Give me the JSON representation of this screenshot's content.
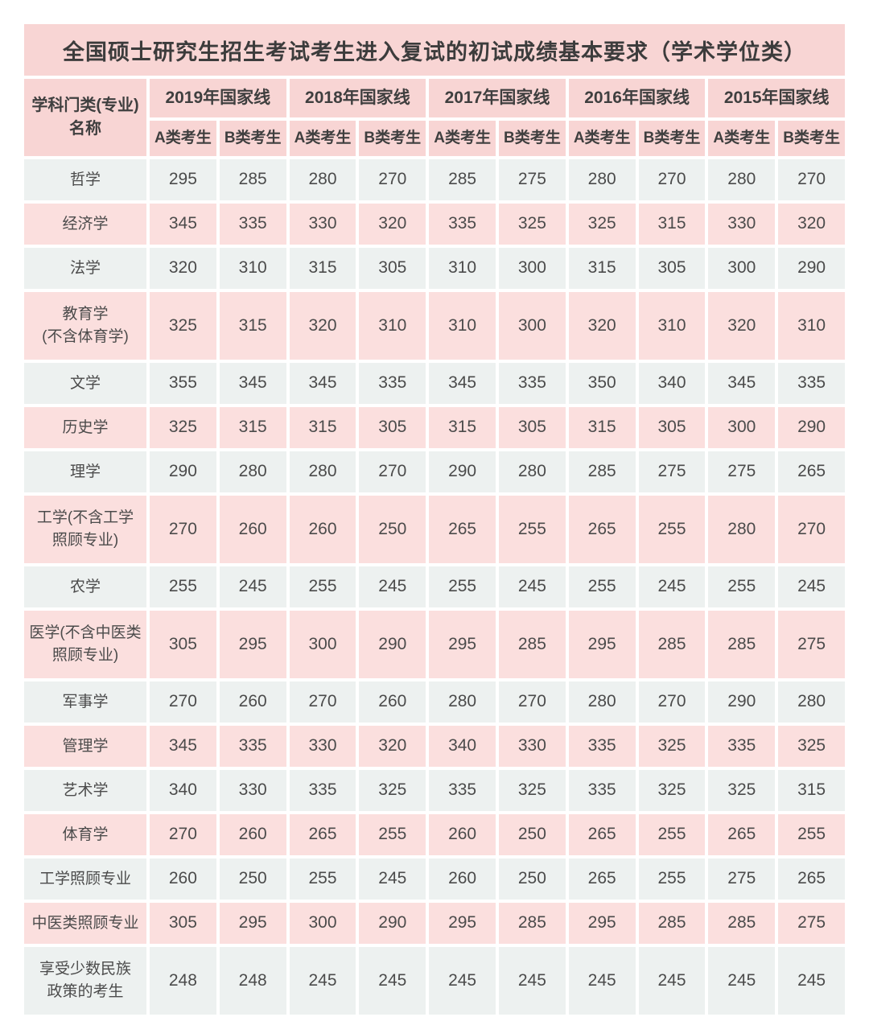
{
  "title": "全国硕士研究生招生考试考生进入复试的初试成绩基本要求（学术学位类）",
  "colors": {
    "header_pink": "#f8d5d4",
    "row_pink": "#fbdfde",
    "row_gray": "#edf1f0",
    "gap_white": "#ffffff",
    "text_dark": "#4b4b4b"
  },
  "chart_data": {
    "type": "table",
    "title": "全国硕士研究生招生考试考生进入复试的初试成绩基本要求（学术学位类）",
    "row_header": "学科门类(专业)名称",
    "row_header_lines": [
      "学科门类(专业)",
      "名称"
    ],
    "column_groups": [
      "2019年国家线",
      "2018年国家线",
      "2017年国家线",
      "2016年国家线",
      "2015年国家线"
    ],
    "sub_columns": [
      "A类考生",
      "B类考生"
    ],
    "columns_flat": [
      "2019年国家线 A类考生",
      "2019年国家线 B类考生",
      "2018年国家线 A类考生",
      "2018年国家线 B类考生",
      "2017年国家线 A类考生",
      "2017年国家线 B类考生",
      "2016年国家线 A类考生",
      "2016年国家线 B类考生",
      "2015年国家线 A类考生",
      "2015年国家线 B类考生"
    ],
    "rows": [
      {
        "name": "哲学",
        "lines": [
          "哲学"
        ],
        "values": [
          295,
          285,
          280,
          270,
          285,
          275,
          280,
          270,
          280,
          270
        ]
      },
      {
        "name": "经济学",
        "lines": [
          "经济学"
        ],
        "values": [
          345,
          335,
          330,
          320,
          335,
          325,
          325,
          315,
          330,
          320
        ]
      },
      {
        "name": "法学",
        "lines": [
          "法学"
        ],
        "values": [
          320,
          310,
          315,
          305,
          310,
          300,
          315,
          305,
          300,
          290
        ]
      },
      {
        "name": "教育学(不含体育学)",
        "lines": [
          "教育学",
          "(不含体育学)"
        ],
        "values": [
          325,
          315,
          320,
          310,
          310,
          300,
          320,
          310,
          320,
          310
        ]
      },
      {
        "name": "文学",
        "lines": [
          "文学"
        ],
        "values": [
          355,
          345,
          345,
          335,
          345,
          335,
          350,
          340,
          345,
          335
        ]
      },
      {
        "name": "历史学",
        "lines": [
          "历史学"
        ],
        "values": [
          325,
          315,
          315,
          305,
          315,
          305,
          315,
          305,
          300,
          290
        ]
      },
      {
        "name": "理学",
        "lines": [
          "理学"
        ],
        "values": [
          290,
          280,
          280,
          270,
          290,
          280,
          285,
          275,
          275,
          265
        ]
      },
      {
        "name": "工学(不含工学照顾专业)",
        "lines": [
          "工学(不含工学",
          "照顾专业)"
        ],
        "values": [
          270,
          260,
          260,
          250,
          265,
          255,
          265,
          255,
          280,
          270
        ]
      },
      {
        "name": "农学",
        "lines": [
          "农学"
        ],
        "values": [
          255,
          245,
          255,
          245,
          255,
          245,
          255,
          245,
          255,
          245
        ]
      },
      {
        "name": "医学(不含中医类照顾专业)",
        "lines": [
          "医学(不含中医类",
          "照顾专业)"
        ],
        "values": [
          305,
          295,
          300,
          290,
          295,
          285,
          295,
          285,
          285,
          275
        ]
      },
      {
        "name": "军事学",
        "lines": [
          "军事学"
        ],
        "values": [
          270,
          260,
          270,
          260,
          280,
          270,
          280,
          270,
          290,
          280
        ]
      },
      {
        "name": "管理学",
        "lines": [
          "管理学"
        ],
        "values": [
          345,
          335,
          330,
          320,
          340,
          330,
          335,
          325,
          335,
          325
        ]
      },
      {
        "name": "艺术学",
        "lines": [
          "艺术学"
        ],
        "values": [
          340,
          330,
          335,
          325,
          335,
          325,
          335,
          325,
          325,
          315
        ]
      },
      {
        "name": "体育学",
        "lines": [
          "体育学"
        ],
        "values": [
          270,
          260,
          265,
          255,
          260,
          250,
          265,
          255,
          265,
          255
        ]
      },
      {
        "name": "工学照顾专业",
        "lines": [
          "工学照顾专业"
        ],
        "values": [
          260,
          250,
          255,
          245,
          260,
          250,
          265,
          255,
          275,
          265
        ]
      },
      {
        "name": "中医类照顾专业",
        "lines": [
          "中医类照顾专业"
        ],
        "values": [
          305,
          295,
          300,
          290,
          295,
          285,
          295,
          285,
          285,
          275
        ]
      },
      {
        "name": "享受少数民族政策的考生",
        "lines": [
          "享受少数民族",
          "政策的考生"
        ],
        "values": [
          248,
          248,
          245,
          245,
          245,
          245,
          245,
          245,
          245,
          245
        ]
      }
    ]
  }
}
